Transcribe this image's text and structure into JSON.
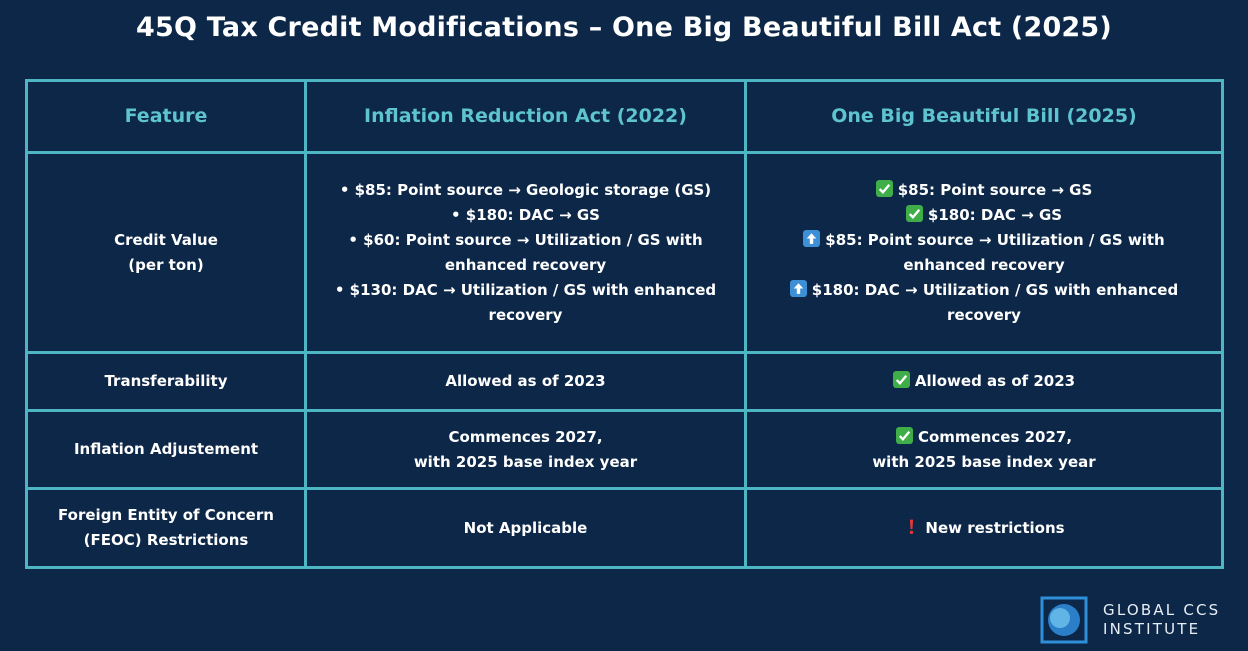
{
  "title": "45Q Tax Credit Modifications – One Big Beautiful Bill Act (2025)",
  "table": {
    "header": [
      "Feature",
      "Inflation Reduction Act (2022)",
      "One Big Beautiful Bill (2025)"
    ],
    "rows": [
      [
        [
          "Credit Value",
          "(per ton)"
        ],
        [
          "• $85: Point source → Geologic storage (GS)",
          "• $180: DAC → GS",
          "• $60: Point source → Utilization / GS with enhanced recovery",
          "• $130: DAC → Utilization / GS with enhanced recovery"
        ],
        [
          "$85: Point source →  GS",
          "$180: DAC → GS",
          "$85: Point source → Utilization / GS with enhanced recovery",
          "$180: DAC → Utilization / GS with enhanced recovery"
        ]
      ],
      [
        [
          "Transferability"
        ],
        [
          "Allowed as of 2023"
        ],
        [
          "Allowed as of 2023"
        ]
      ],
      [
        [
          "Inflation Adjustement"
        ],
        [
          "Commences 2027,",
          "with 2025 base index year"
        ],
        [
          "Commences 2027,",
          "with 2025 base index year"
        ]
      ],
      [
        [
          "Foreign Entity of Concern",
          "(FEOC) Restrictions"
        ],
        [
          "Not Applicable"
        ],
        [
          "New restrictions"
        ]
      ]
    ]
  },
  "logo": [
    "GLOBAL CCS",
    "INSTITUTE"
  ]
}
